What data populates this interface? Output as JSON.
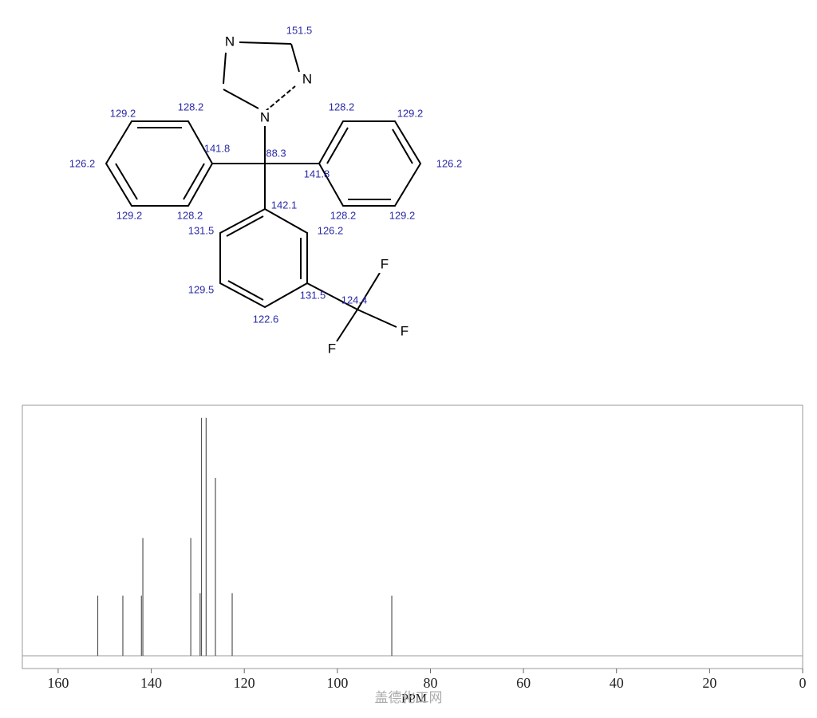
{
  "molecule": {
    "atoms": [
      "N",
      "N",
      "N",
      "F",
      "F",
      "F"
    ],
    "shifts": [
      "151.5",
      "128.2",
      "129.2",
      "141.8",
      "88.3",
      "128.2",
      "129.2",
      "126.2",
      "126.2",
      "141.8",
      "129.2",
      "128.2",
      "128.2",
      "129.2",
      "142.1",
      "131.5",
      "126.2",
      "129.5",
      "131.5",
      "124.4",
      "122.6"
    ]
  },
  "chart_data": {
    "type": "spectrum",
    "x_label": "PPM",
    "watermark": "盖德化工网",
    "xlim": [
      167.7,
      0
    ],
    "ylim": [
      0,
      1
    ],
    "xticks": [
      160,
      140,
      120,
      100,
      80,
      60,
      40,
      20,
      0
    ],
    "color": "#555555",
    "x": [
      151.5,
      146.1,
      142.1,
      141.8,
      131.5,
      129.5,
      129.2,
      128.2,
      126.2,
      122.6,
      88.3
    ],
    "values": [
      0.24,
      0.24,
      0.24,
      0.47,
      0.47,
      0.25,
      0.95,
      0.95,
      0.71,
      0.25,
      0.24
    ]
  }
}
